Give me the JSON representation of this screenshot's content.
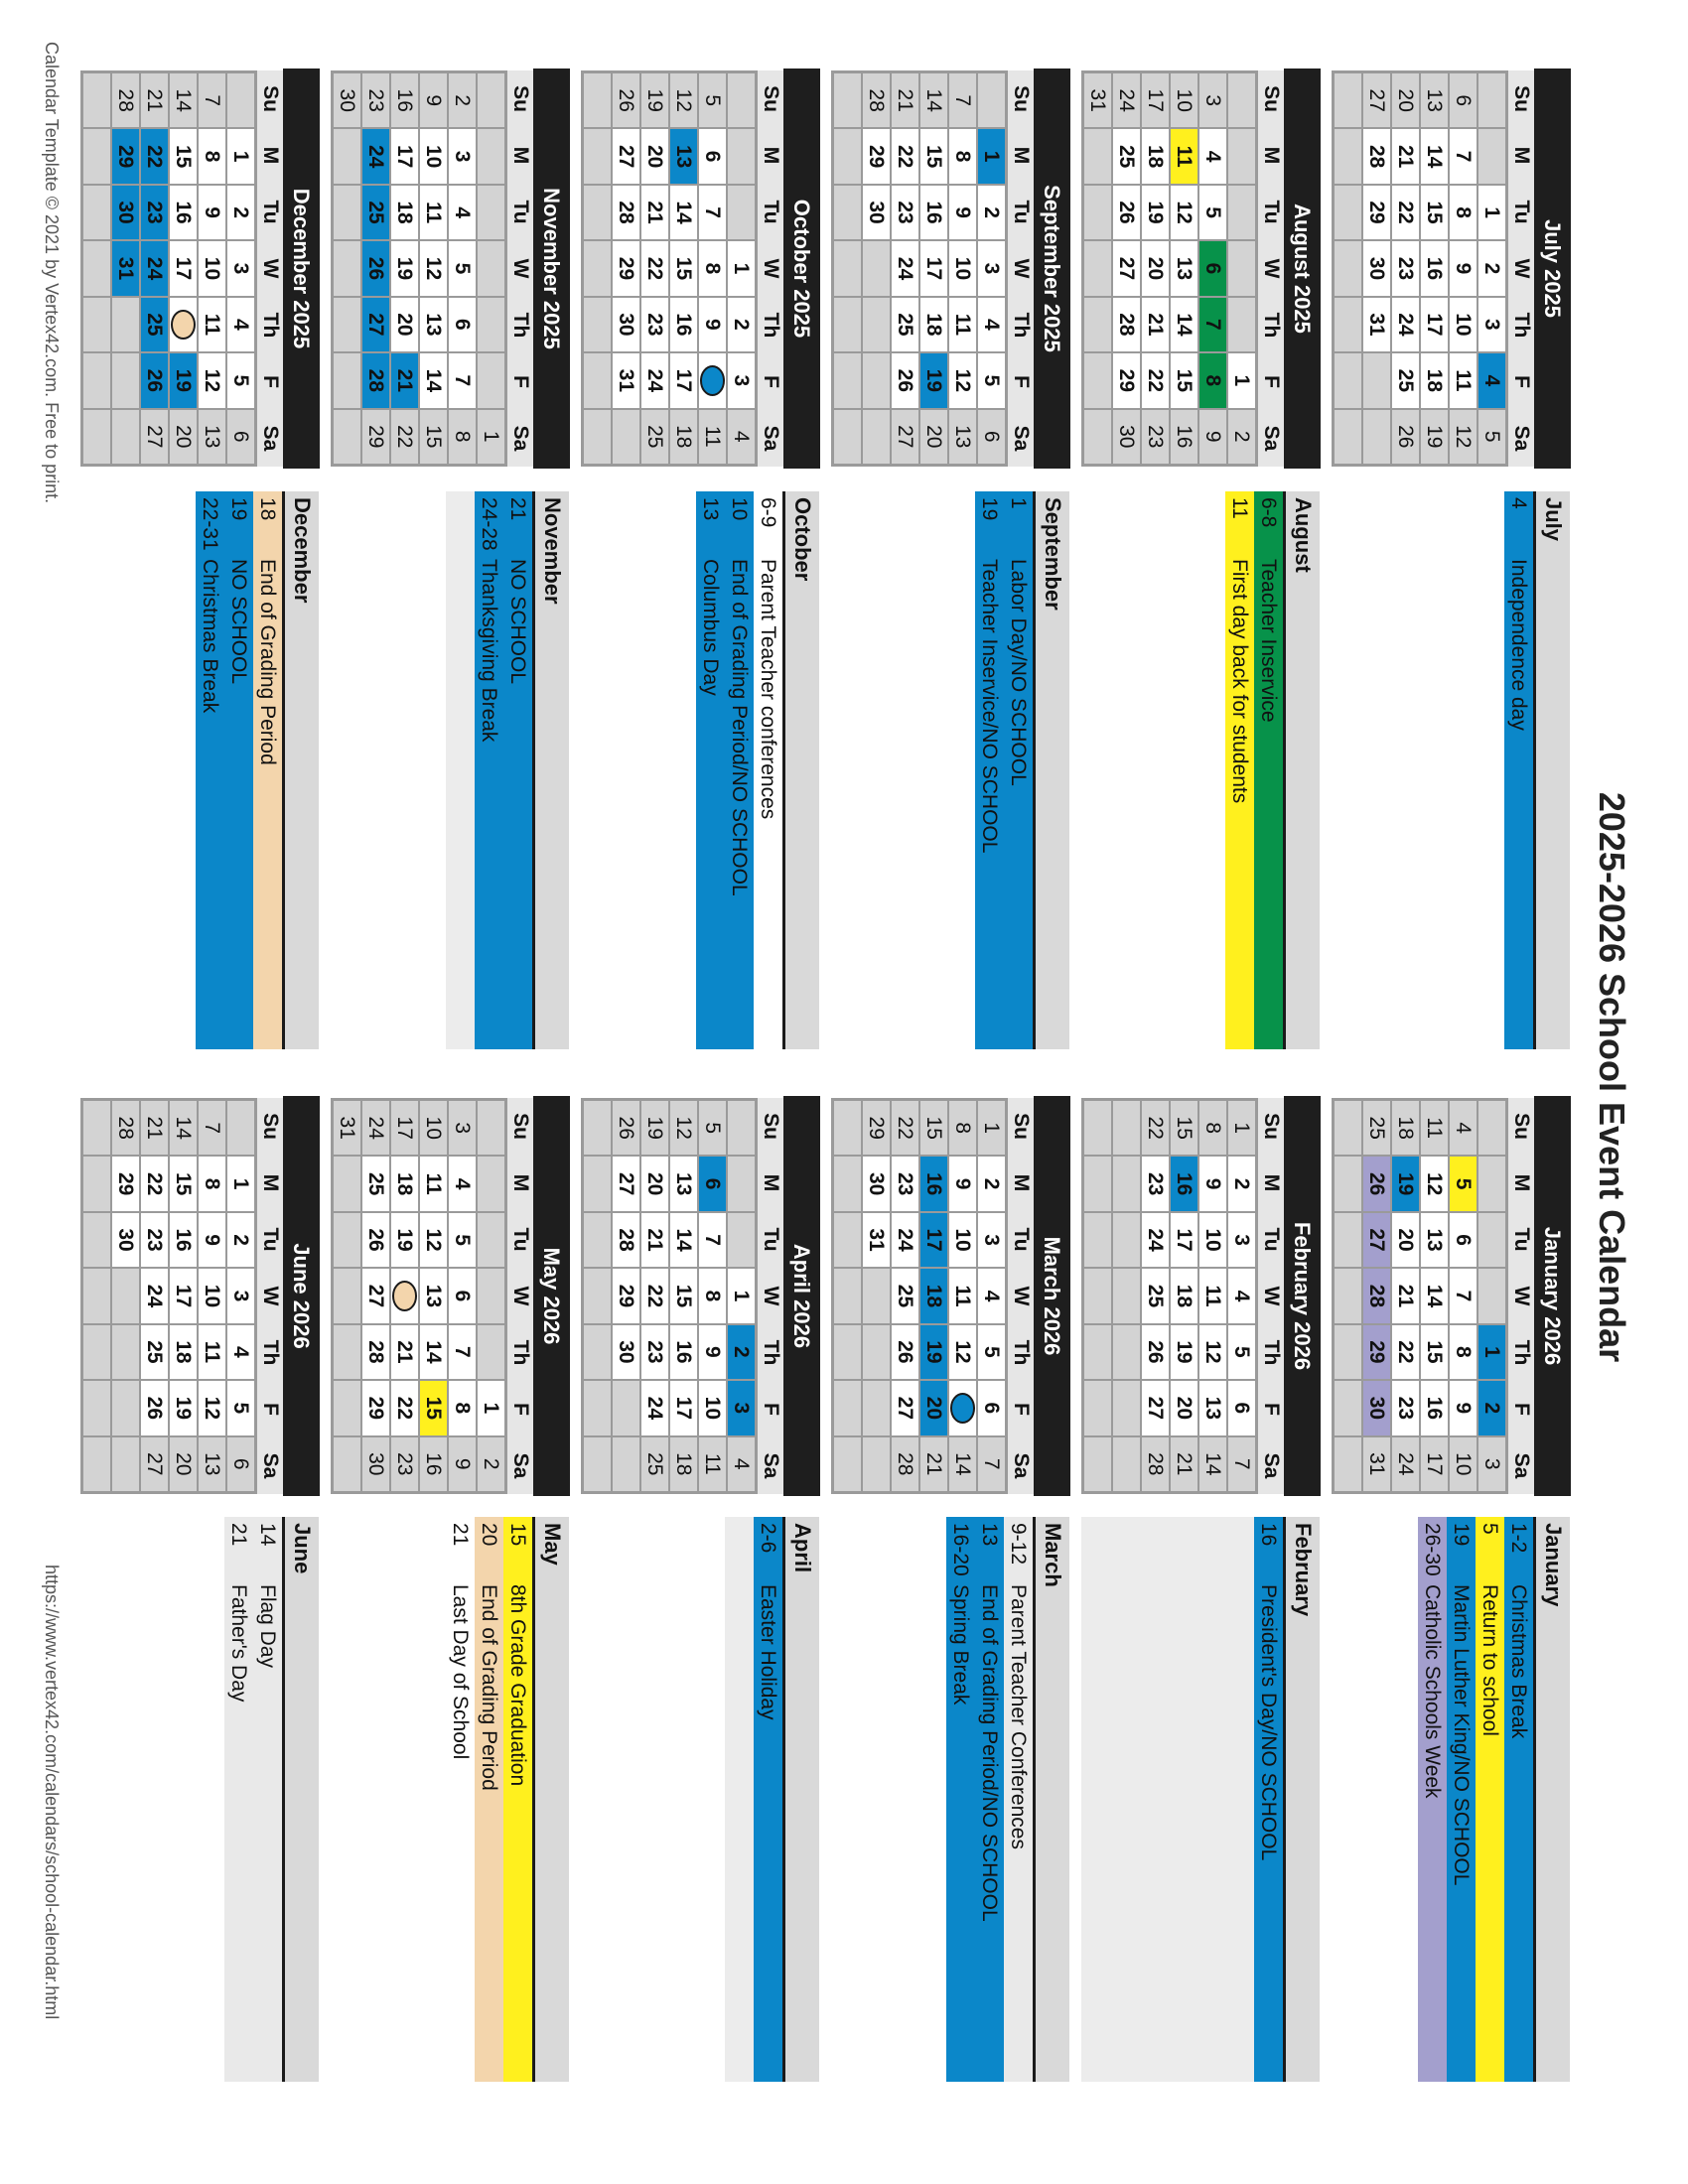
{
  "title": "2025-2026 School Event Calendar",
  "footer_left": "Calendar Template © 2021 by Vertex42.com. Free to print.",
  "footer_right": "https://www.vertex42.com/calendars/school-calendar.html",
  "weekdays": [
    "Su",
    "M",
    "Tu",
    "W",
    "Th",
    "F",
    "Sa"
  ],
  "colors": {
    "blue": "#0b87c9",
    "green": "#07924a",
    "yellow": "#fff01e",
    "tan": "#f3d5ac",
    "purple": "#a39fcd",
    "light": "#e9e9e9",
    "white": "#ffffff"
  },
  "months": [
    {
      "title": "July 2025",
      "weeks": [
        [
          null,
          null,
          1,
          2,
          3,
          4,
          5
        ],
        [
          6,
          7,
          8,
          9,
          10,
          11,
          12
        ],
        [
          13,
          14,
          15,
          16,
          17,
          18,
          19
        ],
        [
          20,
          21,
          22,
          23,
          24,
          25,
          26
        ],
        [
          27,
          28,
          29,
          30,
          31,
          null,
          null
        ],
        [
          null,
          null,
          null,
          null,
          null,
          null,
          null
        ]
      ],
      "highlights": [
        {
          "day": 4,
          "color": "blue"
        }
      ],
      "ovals": [],
      "events": {
        "header": "July",
        "filler": "none",
        "rows": [
          {
            "date": "4",
            "text": "Independence day",
            "color": "blue"
          }
        ]
      }
    },
    {
      "title": "August 2025",
      "weeks": [
        [
          null,
          null,
          null,
          null,
          null,
          1,
          2
        ],
        [
          3,
          4,
          5,
          6,
          7,
          8,
          9
        ],
        [
          10,
          11,
          12,
          13,
          14,
          15,
          16
        ],
        [
          17,
          18,
          19,
          20,
          21,
          22,
          23
        ],
        [
          24,
          25,
          26,
          27,
          28,
          29,
          30
        ],
        [
          31,
          null,
          null,
          null,
          null,
          null,
          null
        ]
      ],
      "highlights": [
        {
          "day": 6,
          "color": "green"
        },
        {
          "day": 7,
          "color": "green"
        },
        {
          "day": 8,
          "color": "green"
        },
        {
          "day": 11,
          "color": "yellow"
        }
      ],
      "ovals": [],
      "events": {
        "header": "August",
        "filler": "none",
        "rows": [
          {
            "date": "6-8",
            "text": "Teacher Inservice",
            "color": "green"
          },
          {
            "date": "11",
            "text": "First day back for students",
            "color": "yellow"
          }
        ]
      }
    },
    {
      "title": "September 2025",
      "weeks": [
        [
          null,
          1,
          2,
          3,
          4,
          5,
          6
        ],
        [
          7,
          8,
          9,
          10,
          11,
          12,
          13
        ],
        [
          14,
          15,
          16,
          17,
          18,
          19,
          20
        ],
        [
          21,
          22,
          23,
          24,
          25,
          26,
          27
        ],
        [
          28,
          29,
          30,
          null,
          null,
          null,
          null
        ],
        [
          null,
          null,
          null,
          null,
          null,
          null,
          null
        ]
      ],
      "highlights": [
        {
          "day": 1,
          "color": "blue"
        },
        {
          "day": 19,
          "color": "blue"
        }
      ],
      "ovals": [],
      "events": {
        "header": "September",
        "filler": "none",
        "rows": [
          {
            "date": "1",
            "text": "Labor Day/NO SCHOOL",
            "color": "blue"
          },
          {
            "date": "19",
            "text": "Teacher Inservice/NO SCHOOL",
            "color": "blue"
          }
        ]
      }
    },
    {
      "title": "October 2025",
      "weeks": [
        [
          null,
          null,
          null,
          1,
          2,
          3,
          4
        ],
        [
          5,
          6,
          7,
          8,
          9,
          10,
          11
        ],
        [
          12,
          13,
          14,
          15,
          16,
          17,
          18
        ],
        [
          19,
          20,
          21,
          22,
          23,
          24,
          25
        ],
        [
          26,
          27,
          28,
          29,
          30,
          31,
          null
        ],
        [
          null,
          null,
          null,
          null,
          null,
          null,
          null
        ]
      ],
      "highlights": [
        {
          "day": 13,
          "color": "blue"
        }
      ],
      "ovals": [
        {
          "day": 10,
          "color": "blue"
        }
      ],
      "events": {
        "header": "October",
        "filler": "none",
        "rows": [
          {
            "date": "6-9",
            "text": "Parent Teacher conferences",
            "color": "white"
          },
          {
            "date": "10",
            "text": "End of Grading Period/NO SCHOOL",
            "color": "blue"
          },
          {
            "date": "13",
            "text": "Columbus Day",
            "color": "blue"
          }
        ]
      }
    },
    {
      "title": "November 2025",
      "weeks": [
        [
          null,
          null,
          null,
          null,
          null,
          null,
          1
        ],
        [
          2,
          3,
          4,
          5,
          6,
          7,
          8
        ],
        [
          9,
          10,
          11,
          12,
          13,
          14,
          15
        ],
        [
          16,
          17,
          18,
          19,
          20,
          21,
          22
        ],
        [
          23,
          24,
          25,
          26,
          27,
          28,
          29
        ],
        [
          30,
          null,
          null,
          null,
          null,
          null,
          null
        ]
      ],
      "highlights": [
        {
          "day": 21,
          "color": "blue"
        },
        {
          "day": 24,
          "color": "blue"
        },
        {
          "day": 25,
          "color": "blue"
        },
        {
          "day": 26,
          "color": "blue"
        },
        {
          "day": 27,
          "color": "blue"
        },
        {
          "day": 28,
          "color": "blue"
        }
      ],
      "ovals": [],
      "events": {
        "header": "November",
        "filler": "light",
        "rows": [
          {
            "date": "21",
            "text": "NO SCHOOL",
            "color": "blue"
          },
          {
            "date": "24-28",
            "text": "Thanksgiving Break",
            "color": "blue"
          }
        ]
      }
    },
    {
      "title": "December 2025",
      "weeks": [
        [
          null,
          1,
          2,
          3,
          4,
          5,
          6
        ],
        [
          7,
          8,
          9,
          10,
          11,
          12,
          13
        ],
        [
          14,
          15,
          16,
          17,
          18,
          19,
          20
        ],
        [
          21,
          22,
          23,
          24,
          25,
          26,
          27
        ],
        [
          28,
          29,
          30,
          31,
          null,
          null,
          null
        ],
        [
          null,
          null,
          null,
          null,
          null,
          null,
          null
        ]
      ],
      "highlights": [
        {
          "day": 19,
          "color": "blue"
        },
        {
          "day": 22,
          "color": "blue"
        },
        {
          "day": 23,
          "color": "blue"
        },
        {
          "day": 24,
          "color": "blue"
        },
        {
          "day": 25,
          "color": "blue"
        },
        {
          "day": 26,
          "color": "blue"
        },
        {
          "day": 29,
          "color": "blue"
        },
        {
          "day": 30,
          "color": "blue"
        },
        {
          "day": 31,
          "color": "blue"
        }
      ],
      "ovals": [
        {
          "day": 18,
          "color": "tan"
        }
      ],
      "events": {
        "header": "December",
        "filler": "none",
        "rows": [
          {
            "date": "18",
            "text": "End of Grading Period",
            "color": "tan"
          },
          {
            "date": "19",
            "text": "NO SCHOOL",
            "color": "blue"
          },
          {
            "date": "22-31",
            "text": "Christmas Break",
            "color": "blue"
          }
        ]
      }
    },
    {
      "title": "January 2026",
      "weeks": [
        [
          null,
          null,
          null,
          null,
          1,
          2,
          3
        ],
        [
          4,
          5,
          6,
          7,
          8,
          9,
          10
        ],
        [
          11,
          12,
          13,
          14,
          15,
          16,
          17
        ],
        [
          18,
          19,
          20,
          21,
          22,
          23,
          24
        ],
        [
          25,
          26,
          27,
          28,
          29,
          30,
          31
        ],
        [
          null,
          null,
          null,
          null,
          null,
          null,
          null
        ]
      ],
      "highlights": [
        {
          "day": 1,
          "color": "blue"
        },
        {
          "day": 2,
          "color": "blue"
        },
        {
          "day": 5,
          "color": "yellow"
        },
        {
          "day": 19,
          "color": "blue"
        },
        {
          "day": 26,
          "color": "purple"
        },
        {
          "day": 27,
          "color": "purple"
        },
        {
          "day": 28,
          "color": "purple"
        },
        {
          "day": 29,
          "color": "purple"
        },
        {
          "day": 30,
          "color": "purple"
        }
      ],
      "ovals": [],
      "events": {
        "header": "January",
        "filler": "none",
        "rows": [
          {
            "date": "1-2",
            "text": "Christmas Break",
            "color": "blue"
          },
          {
            "date": "5",
            "text": "Return to school",
            "color": "yellow"
          },
          {
            "date": "19",
            "text": "Martin Luther King/NO SCHOOL",
            "color": "blue"
          },
          {
            "date": "26-30",
            "text": "Catholic Schools Week",
            "color": "purple"
          }
        ]
      }
    },
    {
      "title": "February 2026",
      "weeks": [
        [
          1,
          2,
          3,
          4,
          5,
          6,
          7
        ],
        [
          8,
          9,
          10,
          11,
          12,
          13,
          14
        ],
        [
          15,
          16,
          17,
          18,
          19,
          20,
          21
        ],
        [
          22,
          23,
          24,
          25,
          26,
          27,
          28
        ],
        [
          null,
          null,
          null,
          null,
          null,
          null,
          null
        ],
        [
          null,
          null,
          null,
          null,
          null,
          null,
          null
        ]
      ],
      "highlights": [
        {
          "day": 16,
          "color": "blue"
        }
      ],
      "ovals": [],
      "events": {
        "header": "February",
        "filler": "full",
        "rows": [
          {
            "date": "16",
            "text": "President's Day/NO SCHOOL",
            "color": "blue"
          }
        ]
      }
    },
    {
      "title": "March 2026",
      "weeks": [
        [
          1,
          2,
          3,
          4,
          5,
          6,
          7
        ],
        [
          8,
          9,
          10,
          11,
          12,
          13,
          14
        ],
        [
          15,
          16,
          17,
          18,
          19,
          20,
          21
        ],
        [
          22,
          23,
          24,
          25,
          26,
          27,
          28
        ],
        [
          29,
          30,
          31,
          null,
          null,
          null,
          null
        ],
        [
          null,
          null,
          null,
          null,
          null,
          null,
          null
        ]
      ],
      "highlights": [
        {
          "day": 16,
          "color": "blue"
        },
        {
          "day": 17,
          "color": "blue"
        },
        {
          "day": 18,
          "color": "blue"
        },
        {
          "day": 19,
          "color": "blue"
        },
        {
          "day": 20,
          "color": "blue"
        }
      ],
      "ovals": [
        {
          "day": 13,
          "color": "blue"
        }
      ],
      "events": {
        "header": "March",
        "filler": "none",
        "rows": [
          {
            "date": "9-12",
            "text": "Parent Teacher Conferences",
            "color": "light"
          },
          {
            "date": "13",
            "text": "End of Grading Period/NO SCHOOL",
            "color": "blue"
          },
          {
            "date": "16-20",
            "text": "Spring Break",
            "color": "blue"
          }
        ]
      }
    },
    {
      "title": "April 2026",
      "weeks": [
        [
          null,
          null,
          null,
          1,
          2,
          3,
          4
        ],
        [
          5,
          6,
          7,
          8,
          9,
          10,
          11
        ],
        [
          12,
          13,
          14,
          15,
          16,
          17,
          18
        ],
        [
          19,
          20,
          21,
          22,
          23,
          24,
          25
        ],
        [
          26,
          27,
          28,
          29,
          30,
          null,
          null
        ],
        [
          null,
          null,
          null,
          null,
          null,
          null,
          null
        ]
      ],
      "highlights": [
        {
          "day": 2,
          "color": "blue"
        },
        {
          "day": 3,
          "color": "blue"
        },
        {
          "day": 6,
          "color": "blue"
        }
      ],
      "ovals": [],
      "events": {
        "header": "April",
        "filler": "light",
        "rows": [
          {
            "date": "2-6",
            "text": "Easter Holiday",
            "color": "blue"
          }
        ]
      }
    },
    {
      "title": "May 2026",
      "weeks": [
        [
          null,
          null,
          null,
          null,
          null,
          1,
          2
        ],
        [
          3,
          4,
          5,
          6,
          7,
          8,
          9
        ],
        [
          10,
          11,
          12,
          13,
          14,
          15,
          16
        ],
        [
          17,
          18,
          19,
          20,
          21,
          22,
          23
        ],
        [
          24,
          25,
          26,
          27,
          28,
          29,
          30
        ],
        [
          31,
          null,
          null,
          null,
          null,
          null,
          null
        ]
      ],
      "highlights": [
        {
          "day": 15,
          "color": "yellow"
        }
      ],
      "ovals": [
        {
          "day": 20,
          "color": "tan"
        }
      ],
      "events": {
        "header": "May",
        "filler": "none",
        "rows": [
          {
            "date": "15",
            "text": "8th Grade Graduation",
            "color": "yellow"
          },
          {
            "date": "20",
            "text": "End of Grading Period",
            "color": "tan"
          },
          {
            "date": "21",
            "text": "Last Day of School",
            "color": "white"
          }
        ]
      }
    },
    {
      "title": "June 2026",
      "weeks": [
        [
          null,
          1,
          2,
          3,
          4,
          5,
          6
        ],
        [
          7,
          8,
          9,
          10,
          11,
          12,
          13
        ],
        [
          14,
          15,
          16,
          17,
          18,
          19,
          20
        ],
        [
          21,
          22,
          23,
          24,
          25,
          26,
          27
        ],
        [
          28,
          29,
          30,
          null,
          null,
          null,
          null
        ],
        [
          null,
          null,
          null,
          null,
          null,
          null,
          null
        ]
      ],
      "highlights": [],
      "ovals": [],
      "events": {
        "header": "June",
        "filler": "none",
        "rows": [
          {
            "date": "14",
            "text": "Flag Day",
            "color": "light"
          },
          {
            "date": "21",
            "text": "Father's Day",
            "color": "light"
          }
        ]
      }
    }
  ]
}
